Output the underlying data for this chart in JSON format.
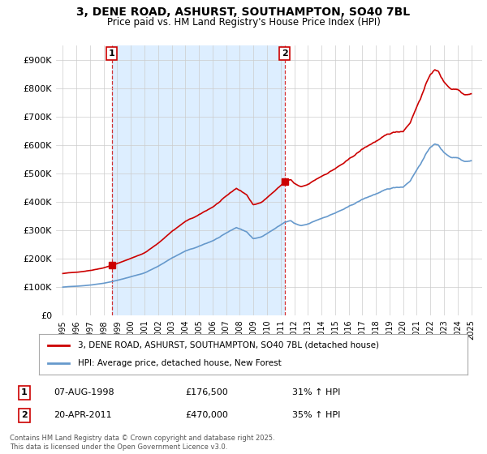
{
  "title_line1": "3, DENE ROAD, ASHURST, SOUTHAMPTON, SO40 7BL",
  "title_line2": "Price paid vs. HM Land Registry's House Price Index (HPI)",
  "legend_label1": "3, DENE ROAD, ASHURST, SOUTHAMPTON, SO40 7BL (detached house)",
  "legend_label2": "HPI: Average price, detached house, New Forest",
  "sale1_date": "07-AUG-1998",
  "sale1_price": "£176,500",
  "sale1_hpi": "31% ↑ HPI",
  "sale2_date": "20-APR-2011",
  "sale2_price": "£470,000",
  "sale2_hpi": "35% ↑ HPI",
  "footer": "Contains HM Land Registry data © Crown copyright and database right 2025.\nThis data is licensed under the Open Government Licence v3.0.",
  "line1_color": "#cc0000",
  "line2_color": "#6699cc",
  "shade_color": "#ddeeff",
  "background_color": "#ffffff",
  "grid_color": "#cccccc",
  "sale1_x": 1998.6,
  "sale2_x": 2011.3,
  "ylim_max": 950000,
  "xlim_min": 1994.5,
  "xlim_max": 2025.8
}
